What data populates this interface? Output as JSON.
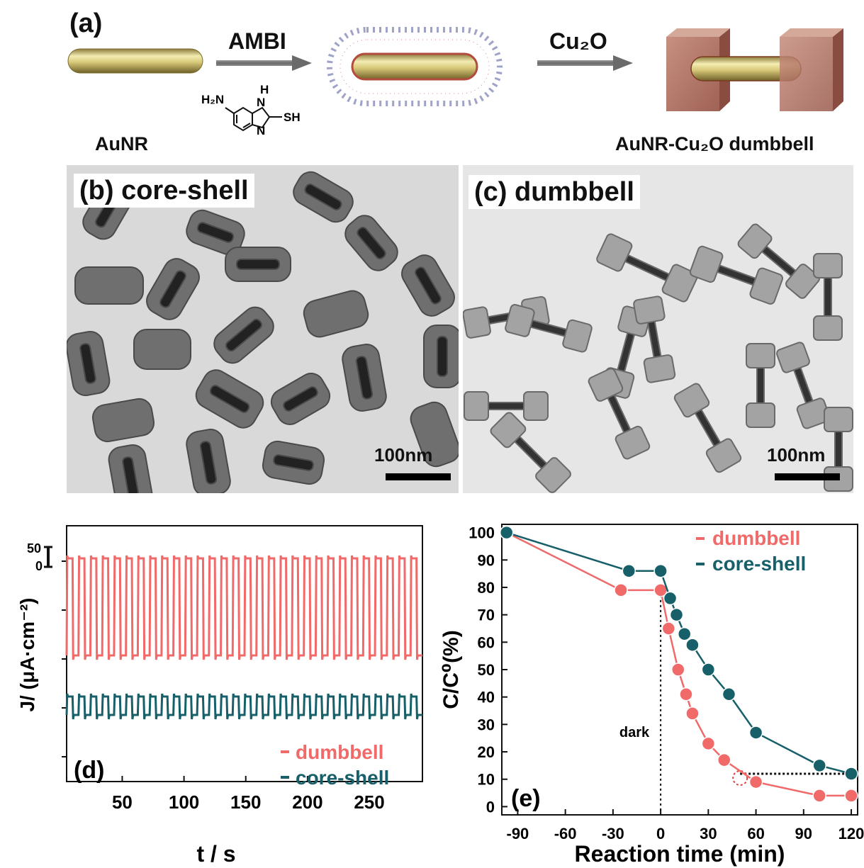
{
  "panel_a": {
    "label": "(a)",
    "step1_reagent": "AMBI",
    "step2_reagent": "Cu₂O",
    "start_label": "AuNR",
    "end_label": "AuNR-Cu₂O dumbbell",
    "molecule": {
      "h2n": "H₂N",
      "h": "H",
      "n1": "N",
      "n2": "N",
      "sh": "SH"
    }
  },
  "panel_b": {
    "label": "(b) core-shell",
    "scale": "100nm"
  },
  "panel_c": {
    "label": "(c) dumbbell",
    "scale": "100nm"
  },
  "chart_data": [
    {
      "panel": "(d)",
      "type": "line",
      "xlabel": "t / s",
      "ylabel": "J/ (μA·cm⁻²)",
      "xticks": [
        50,
        100,
        150,
        200,
        250
      ],
      "xlim": [
        5,
        293
      ],
      "scale_bar": {
        "label_top": "50",
        "label_bottom": "0"
      },
      "on_off_cycles": 30,
      "series": [
        {
          "name": "dumbbell",
          "color": "#f06a6a",
          "pattern": "square-wave chopped photocurrent, large amplitude"
        },
        {
          "name": "core-shell",
          "color": "#17606a",
          "pattern": "square-wave chopped photocurrent, small amplitude"
        }
      ],
      "legend_position": "bottom-right"
    },
    {
      "panel": "(e)",
      "type": "line",
      "xlabel": "Reaction time (min)",
      "ylabel": "C/C⁰(%)",
      "xlim": [
        -100,
        124
      ],
      "ylim": [
        -3,
        103
      ],
      "xticks": [
        -90,
        -60,
        -30,
        0,
        30,
        60,
        90,
        120
      ],
      "yticks": [
        0,
        10,
        20,
        30,
        40,
        50,
        60,
        70,
        80,
        90,
        100
      ],
      "annotation": "dark",
      "series": [
        {
          "name": "dumbbell",
          "color": "#f06a6a",
          "x": [
            -97,
            -25,
            0,
            5,
            11,
            16,
            20,
            30,
            40,
            60,
            100,
            120
          ],
          "y": [
            100,
            79,
            79,
            65,
            50,
            41,
            34,
            23,
            17,
            9,
            4,
            4
          ]
        },
        {
          "name": "core-shell",
          "color": "#17606a",
          "x": [
            -97,
            -20,
            0,
            6,
            10,
            15,
            20,
            30,
            43,
            60,
            100,
            120
          ],
          "y": [
            100,
            86,
            86,
            76,
            70,
            63,
            59,
            50,
            41,
            27,
            15,
            12
          ]
        }
      ],
      "legend_position": "top-right"
    }
  ]
}
